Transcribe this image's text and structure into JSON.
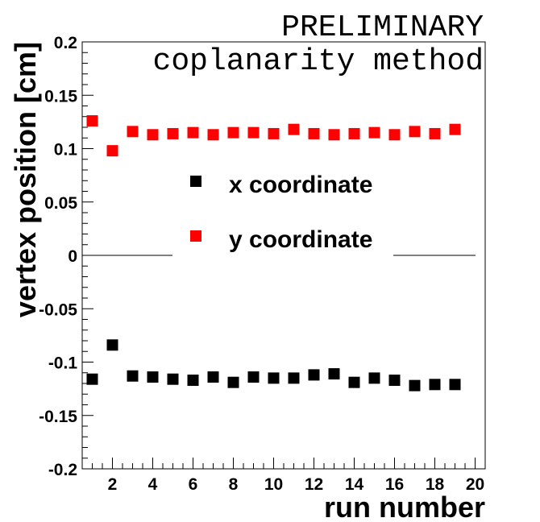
{
  "chart_data": {
    "type": "scatter",
    "title": "PRELIMINARY",
    "subtitle": "coplanarity method",
    "xlabel": "run number",
    "ylabel": "vertex position [cm]",
    "xlim": [
      0.5,
      20.5
    ],
    "ylim": [
      -0.2,
      0.2
    ],
    "x_ticks": [
      2,
      4,
      6,
      8,
      10,
      12,
      14,
      16,
      18,
      20
    ],
    "y_ticks": [
      -0.2,
      -0.15,
      -0.1,
      -0.05,
      0,
      0.05,
      0.1,
      0.15,
      0.2
    ],
    "y_tick_labels": [
      "-0.2",
      "-0.15",
      "-0.1",
      "-0.05",
      "0",
      "0.05",
      "0.1",
      "0.15",
      "0.2"
    ],
    "grid": false,
    "legend_position": "center",
    "series": [
      {
        "name": "x coordinate",
        "color": "#000000",
        "marker": "square",
        "x": [
          1,
          2,
          3,
          4,
          5,
          6,
          7,
          8,
          9,
          10,
          11,
          12,
          13,
          14,
          15,
          16,
          17,
          18,
          19
        ],
        "y": [
          -0.116,
          -0.084,
          -0.113,
          -0.114,
          -0.116,
          -0.117,
          -0.114,
          -0.119,
          -0.114,
          -0.115,
          -0.115,
          -0.112,
          -0.111,
          -0.119,
          -0.115,
          -0.117,
          -0.122,
          -0.121,
          -0.121
        ]
      },
      {
        "name": "y coordinate",
        "color": "#ff0000",
        "marker": "square",
        "x": [
          1,
          2,
          3,
          4,
          5,
          6,
          7,
          8,
          9,
          10,
          11,
          12,
          13,
          14,
          15,
          16,
          17,
          18,
          19
        ],
        "y": [
          0.126,
          0.098,
          0.116,
          0.113,
          0.114,
          0.115,
          0.113,
          0.115,
          0.115,
          0.114,
          0.118,
          0.114,
          0.113,
          0.114,
          0.115,
          0.113,
          0.116,
          0.114,
          0.118
        ]
      }
    ]
  }
}
